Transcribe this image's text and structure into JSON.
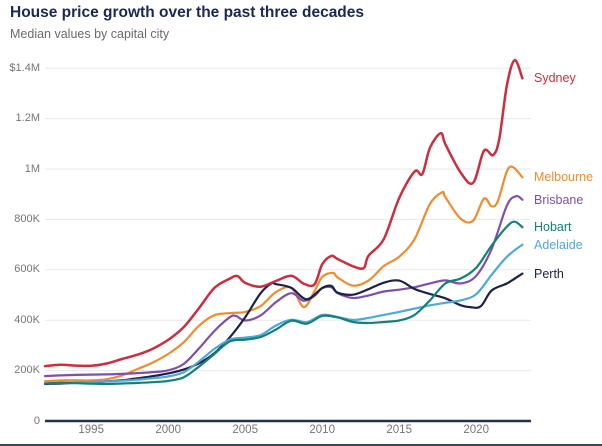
{
  "header": {
    "title": "House price growth over the past three decades",
    "subtitle": "Median values by capital city"
  },
  "colors": {
    "title_text": "#1b2950",
    "subtitle_text": "#6a6a6a",
    "tick_text": "#767676",
    "grid_line": "#e9e9e9",
    "axis_line": "#242f4e",
    "background": "#ffffff"
  },
  "chart_data": {
    "type": "line",
    "title": "House price growth over the past three decades",
    "subtitle": "Median values by capital city",
    "units": "AUD, thousands of dollars (values in $K; 1400 = $1.4M)",
    "grid": "horizontal-only",
    "legend_position": "right-of-line-ends",
    "x_axis": {
      "label": "",
      "ticks": [
        1995,
        2000,
        2005,
        2010,
        2015,
        2020
      ],
      "range": [
        1992,
        2023.5
      ]
    },
    "y_axis": {
      "label": "",
      "range": [
        0,
        1450
      ],
      "ticks": [
        {
          "label": "$1.4M",
          "value": 1400
        },
        {
          "label": "1.2M",
          "value": 1200
        },
        {
          "label": "1M",
          "value": 1000
        },
        {
          "label": "800K",
          "value": 800
        },
        {
          "label": "600K",
          "value": 600
        },
        {
          "label": "400K",
          "value": 400
        },
        {
          "label": "200K",
          "value": 200
        },
        {
          "label": "0",
          "value": 0
        }
      ]
    },
    "series": [
      {
        "name": "Melbourne",
        "color": "#f08c2e",
        "width": 2.2,
        "points": [
          [
            1992,
            158
          ],
          [
            1993,
            161
          ],
          [
            1994,
            162
          ],
          [
            1995,
            161
          ],
          [
            1996,
            166
          ],
          [
            1997,
            181
          ],
          [
            1998,
            206
          ],
          [
            1999,
            232
          ],
          [
            2000,
            266
          ],
          [
            2001,
            312
          ],
          [
            2002,
            378
          ],
          [
            2003,
            420
          ],
          [
            2004,
            428
          ],
          [
            2005,
            433
          ],
          [
            2006,
            456
          ],
          [
            2007,
            512
          ],
          [
            2008,
            528
          ],
          [
            2008.8,
            452
          ],
          [
            2009.5,
            515
          ],
          [
            2010,
            572
          ],
          [
            2010.7,
            588
          ],
          [
            2011,
            570
          ],
          [
            2012,
            537
          ],
          [
            2013,
            557
          ],
          [
            2014,
            615
          ],
          [
            2015,
            652
          ],
          [
            2016,
            722
          ],
          [
            2017,
            862
          ],
          [
            2017.8,
            908
          ],
          [
            2018,
            888
          ],
          [
            2019,
            802
          ],
          [
            2019.8,
            795
          ],
          [
            2020.5,
            882
          ],
          [
            2021,
            852
          ],
          [
            2021.4,
            872
          ],
          [
            2022,
            992
          ],
          [
            2022.4,
            1007
          ],
          [
            2023,
            967
          ]
        ]
      },
      {
        "name": "Brisbane",
        "color": "#7e4fae",
        "width": 2.2,
        "points": [
          [
            1992,
            178
          ],
          [
            1993,
            181
          ],
          [
            1994,
            183
          ],
          [
            1995,
            184
          ],
          [
            1996,
            185
          ],
          [
            1997,
            187
          ],
          [
            1998,
            190
          ],
          [
            1999,
            194
          ],
          [
            2000,
            201
          ],
          [
            2001,
            226
          ],
          [
            2002,
            288
          ],
          [
            2003,
            357
          ],
          [
            2004,
            412
          ],
          [
            2004.4,
            417
          ],
          [
            2005,
            399
          ],
          [
            2006,
            419
          ],
          [
            2007,
            472
          ],
          [
            2008,
            507
          ],
          [
            2008.8,
            477
          ],
          [
            2009.5,
            497
          ],
          [
            2010,
            527
          ],
          [
            2010.6,
            531
          ],
          [
            2011,
            507
          ],
          [
            2012,
            488
          ],
          [
            2013,
            498
          ],
          [
            2014,
            514
          ],
          [
            2015,
            521
          ],
          [
            2016,
            531
          ],
          [
            2017,
            546
          ],
          [
            2018,
            558
          ],
          [
            2019,
            546
          ],
          [
            2020,
            576
          ],
          [
            2021,
            682
          ],
          [
            2022,
            856
          ],
          [
            2022.6,
            892
          ],
          [
            2023,
            878
          ]
        ]
      },
      {
        "name": "Perth",
        "color": "#1b2244",
        "width": 2.2,
        "points": [
          [
            1992,
            147
          ],
          [
            1993,
            149
          ],
          [
            1994,
            151
          ],
          [
            1995,
            153
          ],
          [
            1996,
            157
          ],
          [
            1997,
            162
          ],
          [
            1998,
            169
          ],
          [
            1999,
            178
          ],
          [
            2000,
            189
          ],
          [
            2001,
            204
          ],
          [
            2002,
            229
          ],
          [
            2003,
            269
          ],
          [
            2004,
            332
          ],
          [
            2005,
            412
          ],
          [
            2006,
            507
          ],
          [
            2006.7,
            546
          ],
          [
            2007,
            543
          ],
          [
            2008,
            528
          ],
          [
            2009,
            483
          ],
          [
            2010,
            528
          ],
          [
            2010.6,
            536
          ],
          [
            2011,
            509
          ],
          [
            2012,
            501
          ],
          [
            2013,
            523
          ],
          [
            2014,
            549
          ],
          [
            2015,
            557
          ],
          [
            2016,
            524
          ],
          [
            2017,
            504
          ],
          [
            2018,
            487
          ],
          [
            2019,
            459
          ],
          [
            2019.6,
            452
          ],
          [
            2020.3,
            455
          ],
          [
            2021,
            518
          ],
          [
            2022,
            546
          ],
          [
            2023,
            585
          ]
        ]
      },
      {
        "name": "Adelaide",
        "color": "#4fa8d8",
        "width": 2.2,
        "points": [
          [
            1992,
            149
          ],
          [
            1993,
            152
          ],
          [
            1994,
            154
          ],
          [
            1995,
            155
          ],
          [
            1996,
            157
          ],
          [
            1997,
            160
          ],
          [
            1998,
            164
          ],
          [
            1999,
            170
          ],
          [
            2000,
            177
          ],
          [
            2001,
            193
          ],
          [
            2002,
            236
          ],
          [
            2003,
            286
          ],
          [
            2004,
            323
          ],
          [
            2005,
            331
          ],
          [
            2006,
            341
          ],
          [
            2007,
            379
          ],
          [
            2008,
            402
          ],
          [
            2009,
            392
          ],
          [
            2010,
            421
          ],
          [
            2011,
            413
          ],
          [
            2012,
            401
          ],
          [
            2013,
            409
          ],
          [
            2014,
            421
          ],
          [
            2015,
            433
          ],
          [
            2016,
            446
          ],
          [
            2017,
            459
          ],
          [
            2018,
            469
          ],
          [
            2019,
            479
          ],
          [
            2020,
            503
          ],
          [
            2021,
            580
          ],
          [
            2022,
            652
          ],
          [
            2023,
            700
          ]
        ]
      },
      {
        "name": "Hobart",
        "color": "#148078",
        "width": 2.2,
        "points": [
          [
            1992,
            149
          ],
          [
            1993,
            151
          ],
          [
            1994,
            150
          ],
          [
            1995,
            148
          ],
          [
            1996,
            147
          ],
          [
            1997,
            149
          ],
          [
            1998,
            151
          ],
          [
            1999,
            154
          ],
          [
            2000,
            159
          ],
          [
            2001,
            173
          ],
          [
            2002,
            216
          ],
          [
            2003,
            266
          ],
          [
            2004,
            316
          ],
          [
            2005,
            323
          ],
          [
            2006,
            333
          ],
          [
            2007,
            363
          ],
          [
            2008,
            398
          ],
          [
            2009,
            386
          ],
          [
            2010,
            417
          ],
          [
            2011,
            411
          ],
          [
            2012,
            393
          ],
          [
            2013,
            389
          ],
          [
            2014,
            393
          ],
          [
            2015,
            399
          ],
          [
            2016,
            421
          ],
          [
            2017,
            479
          ],
          [
            2018,
            546
          ],
          [
            2019,
            566
          ],
          [
            2020,
            608
          ],
          [
            2021,
            696
          ],
          [
            2022,
            772
          ],
          [
            2022.5,
            791
          ],
          [
            2023,
            769
          ]
        ]
      },
      {
        "name": "Sydney",
        "color": "#cb2e3e",
        "width": 2.5,
        "points": [
          [
            1992,
            218
          ],
          [
            1993,
            223
          ],
          [
            1994,
            220
          ],
          [
            1995,
            219
          ],
          [
            1996,
            228
          ],
          [
            1997,
            246
          ],
          [
            1998,
            263
          ],
          [
            1999,
            287
          ],
          [
            2000,
            322
          ],
          [
            2001,
            372
          ],
          [
            2002,
            448
          ],
          [
            2003,
            528
          ],
          [
            2004,
            565
          ],
          [
            2004.5,
            575
          ],
          [
            2005,
            548
          ],
          [
            2006,
            533
          ],
          [
            2007,
            556
          ],
          [
            2008,
            576
          ],
          [
            2008.8,
            545
          ],
          [
            2009.5,
            542
          ],
          [
            2010,
            622
          ],
          [
            2010.6,
            655
          ],
          [
            2011,
            643
          ],
          [
            2012,
            614
          ],
          [
            2012.7,
            607
          ],
          [
            2013,
            655
          ],
          [
            2014,
            722
          ],
          [
            2015,
            885
          ],
          [
            2016,
            990
          ],
          [
            2016.5,
            980
          ],
          [
            2017,
            1085
          ],
          [
            2017.7,
            1142
          ],
          [
            2018,
            1098
          ],
          [
            2019,
            985
          ],
          [
            2019.8,
            945
          ],
          [
            2020.5,
            1072
          ],
          [
            2021.1,
            1055
          ],
          [
            2021.5,
            1120
          ],
          [
            2022,
            1335
          ],
          [
            2022.5,
            1432
          ],
          [
            2023,
            1360
          ]
        ]
      }
    ]
  }
}
